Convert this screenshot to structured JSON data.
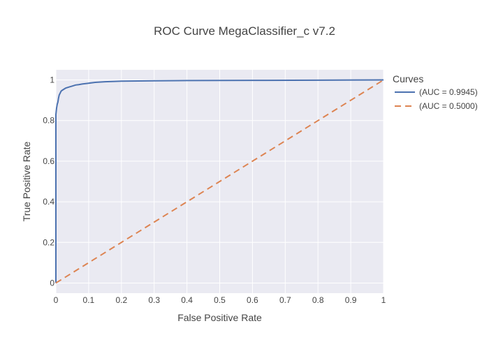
{
  "chart_data": {
    "type": "line",
    "title": "ROC Curve MegaClassifier_c v7.2",
    "xlabel": "False Positive Rate",
    "ylabel": "True Positive Rate",
    "xlim": [
      0,
      1
    ],
    "ylim": [
      -0.05,
      1.05
    ],
    "x_ticks": [
      "0",
      "0.1",
      "0.2",
      "0.3",
      "0.4",
      "0.5",
      "0.6",
      "0.7",
      "0.8",
      "0.9",
      "1"
    ],
    "y_ticks": [
      "0",
      "0.2",
      "0.4",
      "0.6",
      "0.8",
      "1"
    ],
    "grid": true,
    "legend": {
      "title": "Curves",
      "placement": "right"
    },
    "series": [
      {
        "name": "(AUC = 0.9945)",
        "color": "#4c72b0",
        "dash": "solid",
        "x": [
          0,
          0,
          0.002,
          0.004,
          0.006,
          0.008,
          0.01,
          0.013,
          0.016,
          0.02,
          0.025,
          0.03,
          0.04,
          0.05,
          0.06,
          0.07,
          0.08,
          0.1,
          0.12,
          0.15,
          0.18,
          0.2,
          0.3,
          0.4,
          0.6,
          0.8,
          1.0
        ],
        "y": [
          0,
          0.83,
          0.86,
          0.88,
          0.89,
          0.91,
          0.925,
          0.935,
          0.945,
          0.95,
          0.955,
          0.96,
          0.965,
          0.97,
          0.975,
          0.977,
          0.98,
          0.984,
          0.988,
          0.991,
          0.993,
          0.994,
          0.996,
          0.997,
          0.998,
          0.999,
          1.0
        ]
      },
      {
        "name": "(AUC = 0.5000)",
        "color": "#dd8452",
        "dash": "dashed",
        "x": [
          0,
          1
        ],
        "y": [
          0,
          1
        ]
      }
    ]
  }
}
